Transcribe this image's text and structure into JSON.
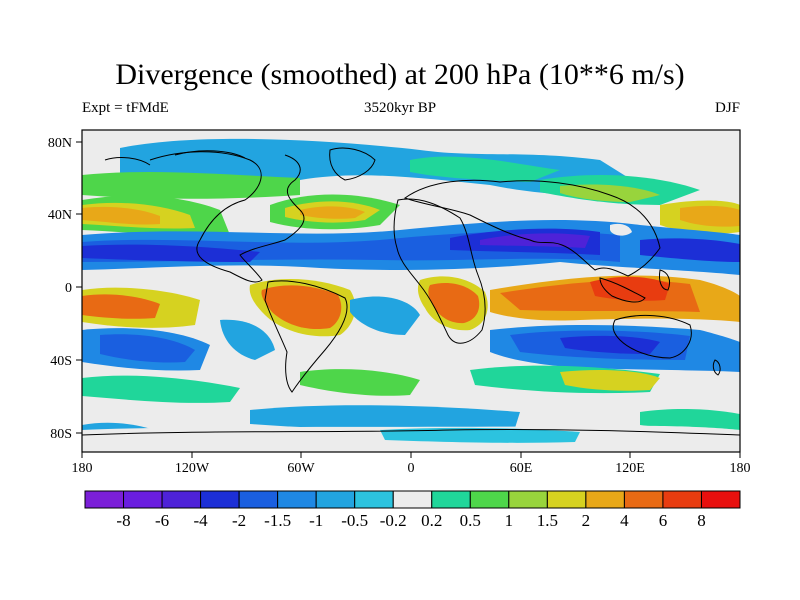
{
  "title": "Divergence (smoothed) at 200 hPa (10**6 m/s)",
  "subtitle_left": "Expt = tFMdE",
  "subtitle_center": "3520kyr BP",
  "subtitle_right": "DJF",
  "y_ticks": [
    "80N",
    "40N",
    "0",
    "40S",
    "80S"
  ],
  "x_ticks": [
    "180",
    "120W",
    "60W",
    "0",
    "60E",
    "120E",
    "180"
  ],
  "colorbar": {
    "labels": [
      "-8",
      "-6",
      "-4",
      "-2",
      "-1.5",
      "-1",
      "-0.5",
      "-0.2",
      "0.2",
      "0.5",
      "1",
      "1.5",
      "2",
      "4",
      "6",
      "8"
    ],
    "colors": [
      "#7b1fd8",
      "#6a1ee0",
      "#4e22d8",
      "#1c2fd6",
      "#1a5fe0",
      "#1f88e4",
      "#22a4e0",
      "#2cc3df",
      "#ececec",
      "#20d69a",
      "#4ed64a",
      "#98d43c",
      "#d6d220",
      "#e8a818",
      "#e86a14",
      "#e83c10",
      "#e8100e"
    ]
  }
}
